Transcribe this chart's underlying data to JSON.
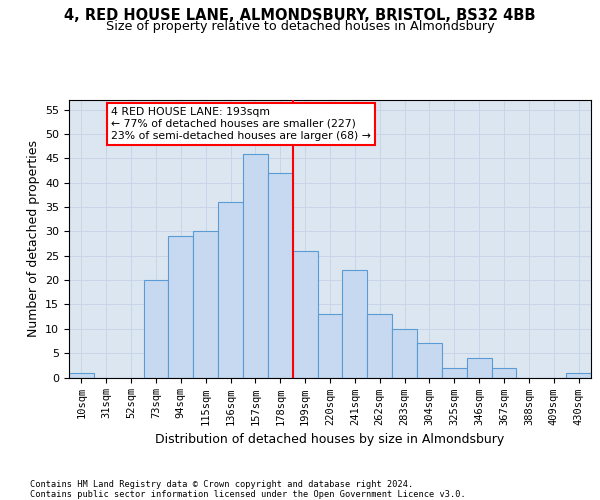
{
  "title": "4, RED HOUSE LANE, ALMONDSBURY, BRISTOL, BS32 4BB",
  "subtitle": "Size of property relative to detached houses in Almondsbury",
  "xlabel": "Distribution of detached houses by size in Almondsbury",
  "ylabel": "Number of detached properties",
  "categories": [
    "10sqm",
    "31sqm",
    "52sqm",
    "73sqm",
    "94sqm",
    "115sqm",
    "136sqm",
    "157sqm",
    "178sqm",
    "199sqm",
    "220sqm",
    "241sqm",
    "262sqm",
    "283sqm",
    "304sqm",
    "325sqm",
    "346sqm",
    "367sqm",
    "388sqm",
    "409sqm",
    "430sqm"
  ],
  "values": [
    1,
    0,
    0,
    20,
    29,
    30,
    36,
    46,
    42,
    26,
    13,
    22,
    13,
    10,
    7,
    2,
    4,
    2,
    0,
    0,
    1
  ],
  "bar_color": "#c6d9f0",
  "bar_edge_color": "#5b9bd5",
  "grid_color": "#c8d4e8",
  "background_color": "#dce6f1",
  "vline_x": 8.5,
  "vline_color": "red",
  "annotation_text": "4 RED HOUSE LANE: 193sqm\n← 77% of detached houses are smaller (227)\n23% of semi-detached houses are larger (68) →",
  "ylim": [
    0,
    57
  ],
  "yticks": [
    0,
    5,
    10,
    15,
    20,
    25,
    30,
    35,
    40,
    45,
    50,
    55
  ],
  "footer": "Contains HM Land Registry data © Crown copyright and database right 2024.\nContains public sector information licensed under the Open Government Licence v3.0."
}
